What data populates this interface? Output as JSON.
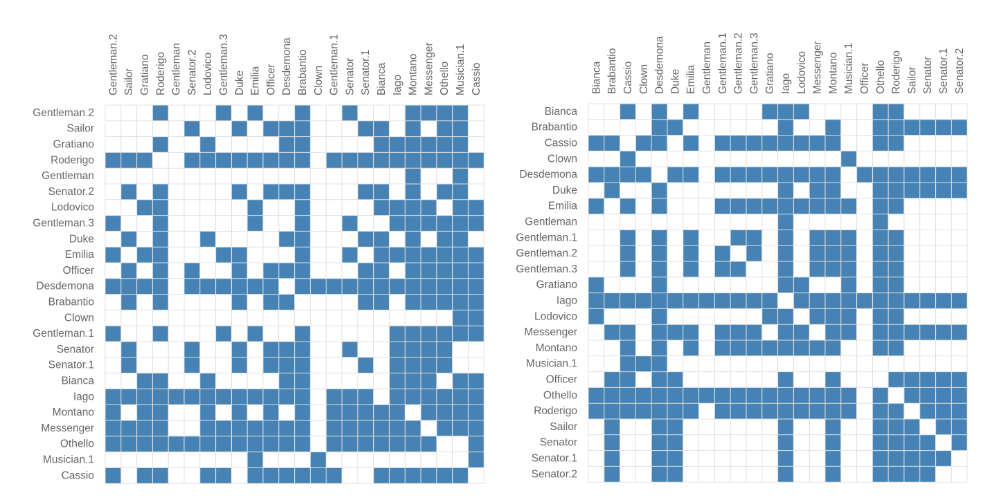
{
  "colors": {
    "filled": "#4682b4",
    "grid": "#e1e1e1",
    "label": "#666666",
    "background": "#ffffff"
  },
  "chart_data": [
    {
      "type": "heatmap",
      "title": "",
      "grid": true,
      "rows": [
        "Gentleman.2",
        "Sailor",
        "Gratiano",
        "Roderigo",
        "Gentleman",
        "Senator.2",
        "Lodovico",
        "Gentleman.3",
        "Duke",
        "Emilia",
        "Officer",
        "Desdemona",
        "Brabantio",
        "Clown",
        "Gentleman.1",
        "Senator",
        "Senator.1",
        "Bianca",
        "Iago",
        "Montano",
        "Messenger",
        "Othello",
        "Musician.1",
        "Cassio"
      ],
      "columns": [
        "Gentleman.2",
        "Sailor",
        "Gratiano",
        "Roderigo",
        "Gentleman",
        "Senator.2",
        "Lodovico",
        "Gentleman.3",
        "Duke",
        "Emilia",
        "Officer",
        "Desdemona",
        "Brabantio",
        "Clown",
        "Gentleman.1",
        "Senator",
        "Senator.1",
        "Bianca",
        "Iago",
        "Montano",
        "Messenger",
        "Othello",
        "Musician.1",
        "Cassio"
      ],
      "matrix": [
        "000100010100100100011110",
        "000001001011100011010110",
        "000100100001100001111110",
        "111001111111101111111111",
        "000000000000000000010010",
        "010100001011100011010110",
        "001100000100100001111011",
        "100100000100100100111111",
        "010100100001100011010110",
        "101100011000100101111111",
        "010101001011100011011111",
        "111101111110111111111111",
        "010100001011000011011111",
        "000000000000000000000011",
        "100100010100100000111111",
        "010001001011100100111100",
        "010001001011100010111100",
        "001100100001100000111011",
        "111111111111101110111111",
        "101100101010101111101111",
        "111100111111101111110111",
        "111111111111101111111001",
        "000000000100010000000001",
        "101100110111111001111110"
      ]
    },
    {
      "type": "heatmap",
      "title": "",
      "grid": true,
      "rows": [
        "Bianca",
        "Brabantio",
        "Cassio",
        "Clown",
        "Desdemona",
        "Duke",
        "Emilia",
        "Gentleman",
        "Gentleman.1",
        "Gentleman.2",
        "Gentleman.3",
        "Gratiano",
        "Iago",
        "Lodovico",
        "Messenger",
        "Montano",
        "Musician.1",
        "Officer",
        "Othello",
        "Roderigo",
        "Sailor",
        "Senator",
        "Senator.1",
        "Senator.2"
      ],
      "columns": [
        "Bianca",
        "Brabantio",
        "Cassio",
        "Clown",
        "Desdemona",
        "Duke",
        "Emilia",
        "Gentleman",
        "Gentleman.1",
        "Gentleman.2",
        "Gentleman.3",
        "Gratiano",
        "Iago",
        "Lodovico",
        "Messenger",
        "Montano",
        "Musician.1",
        "Officer",
        "Othello",
        "Roderigo",
        "Sailor",
        "Senator",
        "Senator.1",
        "Senator.2"
      ],
      "matrix": [
        "001010100001110000110000",
        "000011000000100100111111",
        "110110101111111100110000",
        "001000000000000010000000",
        "111101101111111101111111",
        "010010000000101100111111",
        "101010001111111110110000",
        "000000000000100000100000",
        "001010100110101110110000",
        "001010101010101110110000",
        "001010101100101110110000",
        "100010000000110010110000",
        "111111111111011111111111",
        "100010000001101110110000",
        "011011101110110110111111",
        "001010101111111100110000",
        "001110000000000000000000",
        "011011000000100100011111",
        "111111111111111110101111",
        "111111101111111110110111",
        "010011000000100100111011",
        "010011000000100100111101",
        "010011000000100100111110",
        "010011000000100100111100"
      ]
    }
  ]
}
